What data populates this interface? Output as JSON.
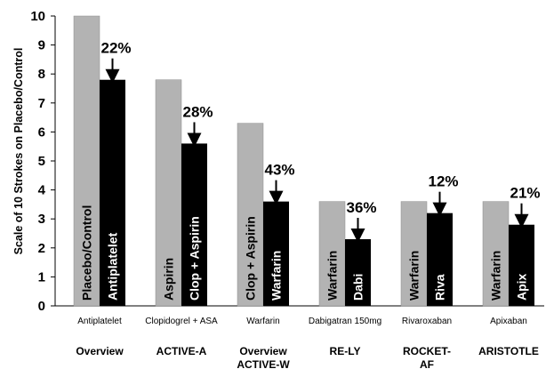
{
  "chart_data": {
    "type": "bar",
    "ylabel": "Scale of 10 Strokes on Placebo/Control",
    "ylim": [
      0,
      10
    ],
    "yticks": [
      "0",
      "1",
      "2",
      "3",
      "4",
      "5",
      "6",
      "7",
      "8",
      "9",
      "10"
    ],
    "grid": false,
    "categories": [
      "Antiplatelet",
      "Clopidogrel + ASA",
      "Warfarin",
      "Dabigatran 150mg",
      "Rivaroxaban",
      "Apixaban"
    ],
    "group_labels": [
      [
        "Overview"
      ],
      [
        "ACTIVE-A"
      ],
      [
        "Overview",
        "ACTIVE-W"
      ],
      [
        "RE-LY"
      ],
      [
        "ROCKET-",
        "AF"
      ],
      [
        "ARISTOTLE"
      ]
    ],
    "colors": {
      "control": "#b3b3b3",
      "treatment": "#000000"
    },
    "series": [
      {
        "values": [
          10,
          7.8,
          6.3,
          3.6,
          3.6,
          3.6
        ]
      },
      {
        "values": [
          7.8,
          5.6,
          3.6,
          2.3,
          3.2,
          2.8
        ]
      }
    ],
    "bar_labels": {
      "control": [
        "Placebo/Control",
        "Aspirin",
        "Clop + Aspirin",
        "Warfarin",
        "Warfarin",
        "Warfarin"
      ],
      "treatment": [
        "Antiplatelet",
        "Clop + Aspirin",
        "Warfarin",
        "Dabi",
        "Riva",
        "Apix"
      ]
    },
    "reductions": [
      "22%",
      "28%",
      "43%",
      "36%",
      "12%",
      "21%"
    ]
  }
}
